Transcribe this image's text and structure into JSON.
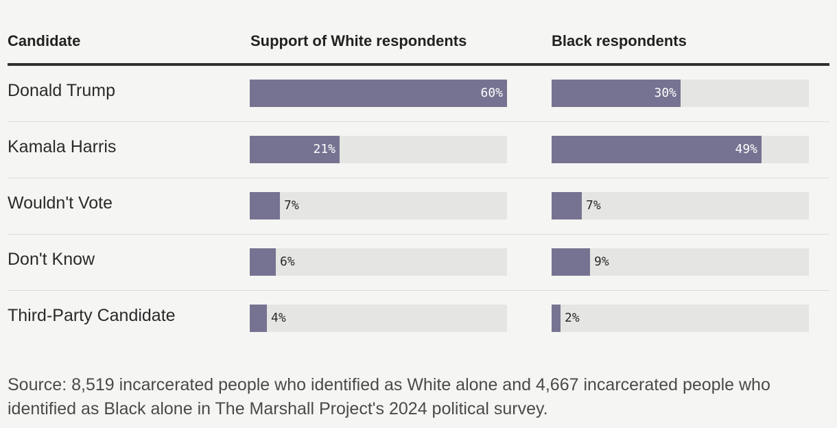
{
  "chart_data": {
    "type": "bar",
    "columns": [
      "Candidate",
      "Support of White respondents",
      "Black respondents"
    ],
    "categories": [
      "Donald Trump",
      "Kamala Harris",
      "Wouldn't Vote",
      "Don't Know",
      "Third-Party Candidate"
    ],
    "series": [
      {
        "name": "Support of White respondents",
        "values": [
          60,
          21,
          7,
          6,
          4
        ],
        "labels": [
          "60%",
          "21%",
          "7%",
          "6%",
          "4%"
        ]
      },
      {
        "name": "Black respondents",
        "values": [
          30,
          49,
          7,
          9,
          2
        ],
        "labels": [
          "30%",
          "49%",
          "7%",
          "9%",
          "2%"
        ]
      }
    ],
    "xlim": [
      0,
      60
    ],
    "bar_color": "#757391",
    "track_color": "#e5e5e3",
    "source": "Source: 8,519 incarcerated people who identified as White alone and 4,667 incarcerated people who identified as Black alone in The Marshall Project's 2024 political survey."
  }
}
